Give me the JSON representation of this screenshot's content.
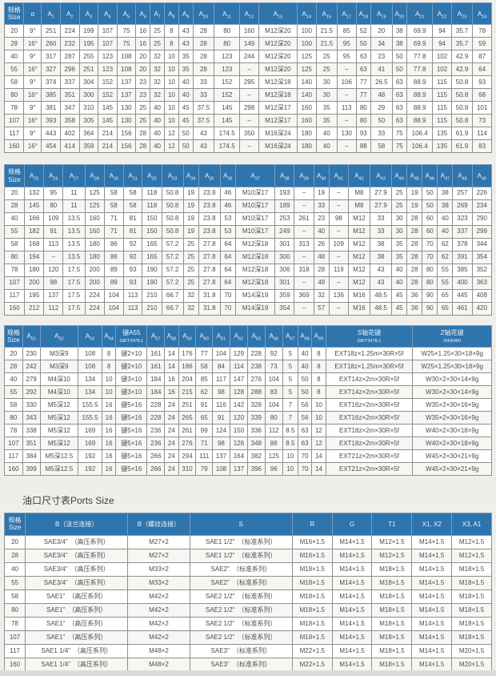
{
  "page": {
    "ports_section_title": "油口尺寸表Ports Size"
  },
  "colors": {
    "header_bg": "#2e74ad",
    "header_text": "#eef4fa",
    "border": "#8f8f8f",
    "row_alt": "#f7f6f2",
    "page_bg": "#f0eeea"
  },
  "tables": [
    {
      "name": "dimensions-table-a1-a24",
      "headers": [
        "规格|Size",
        "α",
        "A1",
        "A2",
        "A3",
        "A4",
        "A5",
        "A6",
        "A7",
        "A8",
        "A9",
        "A10",
        "A11",
        "A12",
        "A13",
        "A14",
        "A15",
        "A17",
        "A18",
        "A19",
        "A20",
        "A21",
        "A22",
        "A23",
        "A24"
      ],
      "rows": [
        [
          "20",
          "9°",
          "251",
          "224",
          "199",
          "107",
          "75",
          "16",
          "25",
          "8",
          "43",
          "28",
          "80",
          "160",
          "M12深20",
          "100",
          "21.5",
          "85",
          "52",
          "20",
          "38",
          "69.9",
          "94",
          "35.7",
          "78"
        ],
        [
          "28",
          "16°",
          "260",
          "232",
          "195",
          "107",
          "75",
          "16",
          "25",
          "8",
          "43",
          "28",
          "80",
          "149",
          "M12深20",
          "100",
          "21.5",
          "95",
          "50",
          "34",
          "38",
          "69.9",
          "94",
          "35.7",
          "59"
        ],
        [
          "40",
          "9°",
          "317",
          "287",
          "255",
          "123",
          "108",
          "20",
          "32",
          "10",
          "35",
          "28",
          "123",
          "244",
          "M12深20",
          "125",
          "25",
          "95",
          "63",
          "23",
          "50",
          "77.8",
          "102",
          "42.9",
          "87"
        ],
        [
          "55",
          "16°",
          "327",
          "296",
          "251",
          "123",
          "108",
          "20",
          "32",
          "10",
          "35",
          "28",
          "123",
          "–",
          "M12深20",
          "125",
          "25",
          "–",
          "63",
          "41",
          "50",
          "77.8",
          "102",
          "42.9",
          "64"
        ],
        [
          "58",
          "9°",
          "374",
          "337",
          "304",
          "152",
          "137",
          "23",
          "32",
          "10",
          "40",
          "33",
          "152",
          "295",
          "M12深18",
          "140",
          "30",
          "106",
          "77",
          "26.5",
          "63",
          "88.9",
          "115",
          "50.8",
          "93"
        ],
        [
          "80",
          "16°",
          "385",
          "351",
          "300",
          "152",
          "137",
          "23",
          "32",
          "10",
          "40",
          "33",
          "152",
          "–",
          "M12深18",
          "140",
          "30",
          "–",
          "77",
          "48",
          "63",
          "88.9",
          "115",
          "50.8",
          "68"
        ],
        [
          "78",
          "9°",
          "381",
          "347",
          "310",
          "145",
          "130",
          "25",
          "40",
          "10",
          "45",
          "37.5",
          "145",
          "298",
          "M12深17",
          "160",
          "35",
          "113",
          "80",
          "29",
          "63",
          "88.9",
          "115",
          "50.8",
          "101"
        ],
        [
          "107",
          "16°",
          "393",
          "358",
          "305",
          "145",
          "130",
          "25",
          "40",
          "10",
          "45",
          "37.5",
          "145",
          "–",
          "M12深17",
          "160",
          "35",
          "–",
          "80",
          "50",
          "63",
          "88.9",
          "115",
          "50.8",
          "73"
        ],
        [
          "117",
          "9°",
          "443",
          "402",
          "364",
          "214",
          "156",
          "28",
          "40",
          "12",
          "50",
          "43",
          "174.5",
          "350",
          "M16深24",
          "180",
          "40",
          "130",
          "93",
          "33",
          "75",
          "106.4",
          "135",
          "61.9",
          "114"
        ],
        [
          "160",
          "16°",
          "454",
          "414",
          "359",
          "214",
          "156",
          "28",
          "40",
          "12",
          "50",
          "43",
          "174.5",
          "–",
          "M16深24",
          "180",
          "40",
          "–",
          "88",
          "58",
          "75",
          "106.4",
          "135",
          "61.9",
          "83"
        ]
      ]
    },
    {
      "name": "dimensions-table-a25-a49",
      "headers": [
        "规格|Size",
        "A25",
        "A26",
        "A27",
        "A28",
        "A30",
        "A31",
        "A32",
        "A33",
        "A34",
        "A35",
        "A36",
        "A37",
        "A38",
        "A39",
        "A40",
        "A41",
        "A42",
        "A43",
        "A44",
        "A45",
        "A46",
        "A47",
        "A48",
        "A49"
      ],
      "rows": [
        [
          "20",
          "132",
          "95",
          "11",
          "125",
          "58",
          "58",
          "118",
          "50.8",
          "19",
          "23.8",
          "46",
          "M10深17",
          "193",
          "–",
          "19",
          "–",
          "M8",
          "27.9",
          "25",
          "19",
          "50",
          "38",
          "257",
          "226"
        ],
        [
          "28",
          "145",
          "80",
          "11",
          "125",
          "58",
          "58",
          "118",
          "50.8",
          "19",
          "23.8",
          "46",
          "M10深17",
          "189",
          "–",
          "33",
          "–",
          "M8",
          "27.9",
          "25",
          "19",
          "50",
          "38",
          "269",
          "234"
        ],
        [
          "40",
          "166",
          "109",
          "13.5",
          "160",
          "71",
          "81",
          "150",
          "50.8",
          "19",
          "23.8",
          "53",
          "M10深17",
          "253",
          "261",
          "23",
          "98",
          "M12",
          "33",
          "30",
          "28",
          "60",
          "40",
          "323",
          "290"
        ],
        [
          "55",
          "182",
          "91",
          "13.5",
          "160",
          "71",
          "81",
          "150",
          "50.8",
          "19",
          "23.8",
          "53",
          "M10深17",
          "249",
          "–",
          "40",
          "–",
          "M12",
          "33",
          "30",
          "28",
          "60",
          "40",
          "337",
          "299"
        ],
        [
          "58",
          "168",
          "113",
          "13.5",
          "180",
          "86",
          "92",
          "165",
          "57.2",
          "25",
          "27.8",
          "64",
          "M12深18",
          "301",
          "313",
          "26",
          "109",
          "M12",
          "38",
          "35",
          "28",
          "70",
          "62",
          "378",
          "344"
        ],
        [
          "80",
          "194",
          "–",
          "13.5",
          "180",
          "86",
          "92",
          "165",
          "57.2",
          "25",
          "27.8",
          "64",
          "M12深18",
          "300",
          "–",
          "48",
          "–",
          "M12",
          "38",
          "35",
          "28",
          "70",
          "62",
          "391",
          "354"
        ],
        [
          "78",
          "180",
          "120",
          "17.5",
          "200",
          "89",
          "93",
          "190",
          "57.2",
          "25",
          "27.8",
          "64",
          "M12深18",
          "306",
          "318",
          "28",
          "119",
          "M12",
          "43",
          "40",
          "28",
          "80",
          "55",
          "385",
          "352"
        ],
        [
          "107",
          "200",
          "98",
          "17.5",
          "200",
          "89",
          "93",
          "190",
          "57.2",
          "25",
          "27.8",
          "64",
          "M12深18",
          "301",
          "–",
          "49",
          "–",
          "M12",
          "43",
          "40",
          "28",
          "80",
          "55",
          "400",
          "363"
        ],
        [
          "117",
          "195",
          "137",
          "17.5",
          "224",
          "104",
          "113",
          "210",
          "66.7",
          "32",
          "31.8",
          "70",
          "M14深19",
          "359",
          "369",
          "32",
          "136",
          "M16",
          "48.5",
          "45",
          "36",
          "90",
          "65",
          "445",
          "408"
        ],
        [
          "160",
          "212",
          "112",
          "17.5",
          "224",
          "104",
          "113",
          "210",
          "66.7",
          "32",
          "31.8",
          "70",
          "M14深19",
          "354",
          "–",
          "57",
          "–",
          "M16",
          "48.5",
          "45",
          "36",
          "90",
          "65",
          "461",
          "420"
        ]
      ]
    },
    {
      "name": "shaft-key-spline-table-a51-a69",
      "headers": [
        "规格|Size",
        "A51",
        "A52",
        "A53",
        "A54",
        "键A55|GB/T3478.1",
        "A57",
        "A58",
        "A59",
        "A60",
        "A61",
        "A62",
        "A63",
        "A66",
        "A67",
        "A68",
        "A69",
        "S轴花键|GB/T3478.1",
        "Z轴花键|DIN5480"
      ],
      "rows": [
        [
          "20",
          "230",
          "M3深9",
          "108",
          "8",
          "键2×10",
          "161",
          "14",
          "176",
          "77",
          "104",
          "129",
          "228",
          "92",
          "5",
          "40",
          "8",
          "EXT18z×1.25m×30R×5f",
          "W25×1.25×30×18×9g"
        ],
        [
          "28",
          "242",
          "M3深9",
          "108",
          "8",
          "键2×10",
          "161",
          "14",
          "186",
          "58",
          "84",
          "114",
          "238",
          "73",
          "5",
          "40",
          "8",
          "EXT18z×1.25m×30R×5f",
          "W25×1.25×30×18×9g"
        ],
        [
          "40",
          "279",
          "M4深10",
          "134",
          "10",
          "键3×10",
          "184",
          "16",
          "204",
          "85",
          "117",
          "147",
          "276",
          "104",
          "5",
          "50",
          "8",
          "EXT14z×2m×30R×5f",
          "W30×2×30×14×9g"
        ],
        [
          "55",
          "292",
          "M4深10",
          "134",
          "10",
          "键3×10",
          "184",
          "16",
          "215",
          "62",
          "98",
          "128",
          "288",
          "83",
          "5",
          "50",
          "8",
          "EXT14z×2m×30R×5f",
          "W30×2×30×14×9g"
        ],
        [
          "58",
          "330",
          "M5深12",
          "155.5",
          "16",
          "键5×16",
          "228",
          "24",
          "251",
          "91",
          "116",
          "142",
          "328",
          "104",
          "7",
          "56",
          "10",
          "EXT16z×2m×30R×5f",
          "W35×2×30×16×9g"
        ],
        [
          "80",
          "343",
          "M5深12",
          "155.5",
          "16",
          "键5×16",
          "228",
          "24",
          "265",
          "65",
          "91",
          "120",
          "339",
          "80",
          "7",
          "56",
          "10",
          "EXT16z×2m×30R×5f",
          "W35×2×30×16×9g"
        ],
        [
          "78",
          "338",
          "M5深12",
          "169",
          "16",
          "键5×16",
          "236",
          "24",
          "261",
          "99",
          "124",
          "150",
          "336",
          "112",
          "8.5",
          "63",
          "12",
          "EXT18z×2m×30R×5f",
          "W40×2×30×18×9g"
        ],
        [
          "107",
          "351",
          "M5深12",
          "169",
          "16",
          "键5×16",
          "236",
          "24",
          "276",
          "71",
          "98",
          "126",
          "348",
          "86",
          "8.5",
          "63",
          "12",
          "EXT18z×2m×30R×5f",
          "W40×2×30×18×9g"
        ],
        [
          "117",
          "384",
          "M5深12.5",
          "192",
          "16",
          "键5×16",
          "266",
          "24",
          "294",
          "111",
          "137",
          "164",
          "382",
          "125",
          "10",
          "70",
          "14",
          "EXT21z×2m×30R×5f",
          "W45×2×30×21×9g"
        ],
        [
          "160",
          "399",
          "M5深12.5",
          "192",
          "16",
          "键5×16",
          "266",
          "24",
          "310",
          "79",
          "108",
          "137",
          "396",
          "96",
          "10",
          "70",
          "14",
          "EXT21z×2m×30R×5f",
          "W45×2×30×21×9g"
        ]
      ]
    },
    {
      "name": "ports-size-table",
      "headers": [
        "规格|Size",
        "B（法兰连接）",
        "B（螺纹连接）",
        "S",
        "R",
        "G",
        "T1",
        "X1, X2",
        "X3, A1"
      ],
      "rows": [
        [
          "20",
          "SAE3/4\"　（高压系列）",
          "M27×2",
          "SAE1 1/2\"　（标准系列）",
          "M16×1.5",
          "M14×1.5",
          "M12×1.5",
          "M14×1.5",
          "M12×1.5"
        ],
        [
          "28",
          "SAE3/4\"　（高压系列）",
          "M27×2",
          "SAE1 1/2\"　（标准系列）",
          "M16×1.5",
          "M14×1.5",
          "M12×1.5",
          "M14×1.5",
          "M12×1.5"
        ],
        [
          "40",
          "SAE3/4\"　（高压系列）",
          "M33×2",
          "SAE2\"　（标准系列）",
          "M18×1.5",
          "M14×1.5",
          "M18×1.5",
          "M14×1.5",
          "M18×1.5"
        ],
        [
          "55",
          "SAE3/4\"　（高压系列）",
          "M33×2",
          "SAE2\"　（标准系列）",
          "M18×1.5",
          "M14×1.5",
          "M18×1.5",
          "M14×1.5",
          "M18×1.5"
        ],
        [
          "58",
          "SAE1\"　（高压系列）",
          "M42×2",
          "SAE2 1/2\"　（标准系列）",
          "M18×1.5",
          "M14×1.5",
          "M18×1.5",
          "M14×1.5",
          "M18×1.5"
        ],
        [
          "80",
          "SAE1\"　（高压系列）",
          "M42×2",
          "SAE2 1/2\"　（标准系列）",
          "M18×1.5",
          "M14×1.5",
          "M18×1.5",
          "M14×1.5",
          "M18×1.5"
        ],
        [
          "78",
          "SAE1\"　（高压系列）",
          "M42×2",
          "SAE2 1/2\"　（标准系列）",
          "M18×1.5",
          "M14×1.5",
          "M18×1.5",
          "M14×1.5",
          "M18×1.5"
        ],
        [
          "107",
          "SAE1\"　（高压系列）",
          "M42×2",
          "SAE2 1/2\"　（标准系列）",
          "M18×1.5",
          "M14×1.5",
          "M18×1.5",
          "M14×1.5",
          "M18×1.5"
        ],
        [
          "117",
          "SAE1 1/4\"　（高压系列）",
          "M48×2",
          "SAE3\"　（标准系列）",
          "M22×1.5",
          "M14×1.5",
          "M18×1.5",
          "M14×1.5",
          "M20×1.5"
        ],
        [
          "160",
          "SAE1 1/4\"　（高压系列）",
          "M48×2",
          "SAE3\"　（标准系列）",
          "M22×1.5",
          "M14×1.5",
          "M18×1.5",
          "M14×1.5",
          "M20×1.5"
        ]
      ]
    }
  ]
}
